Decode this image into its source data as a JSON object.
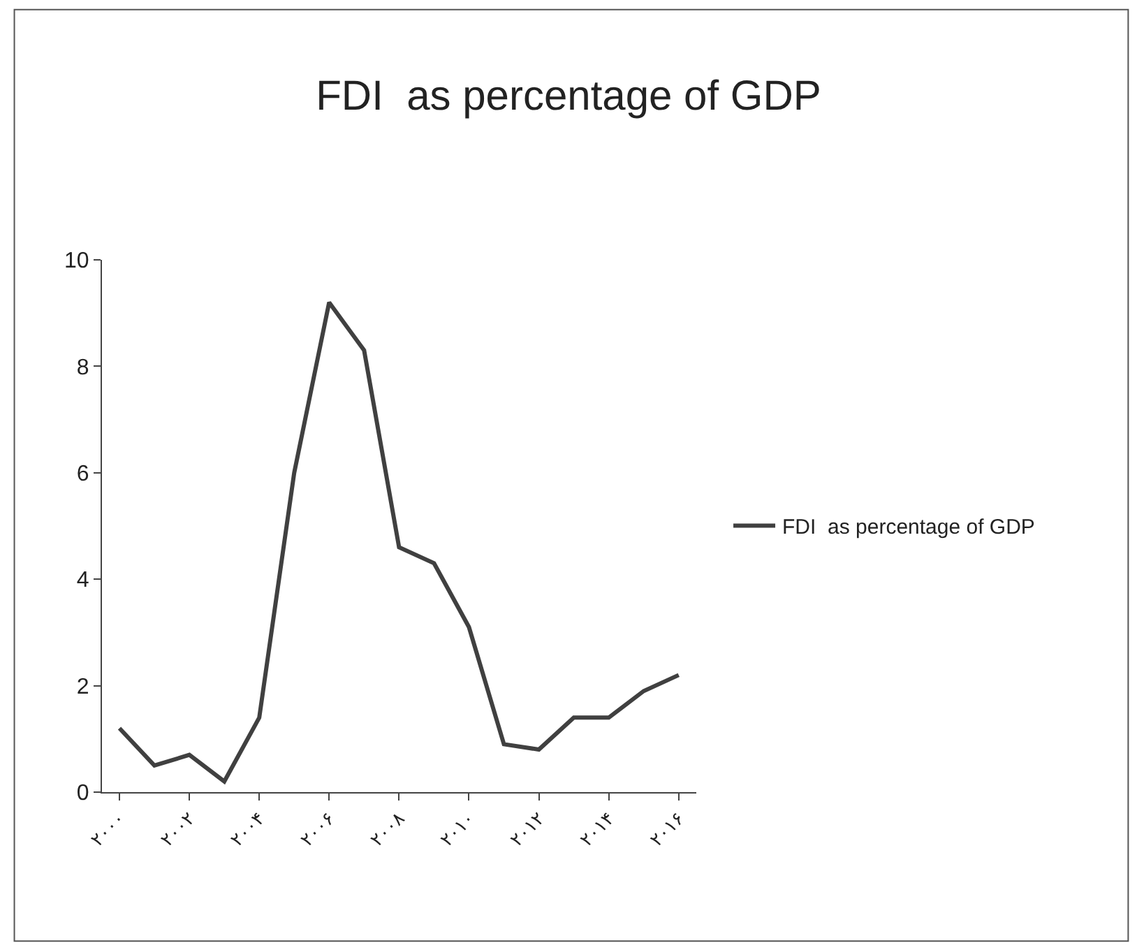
{
  "chart_data": {
    "type": "line",
    "title": "FDI  as percentage of GDP",
    "categories": [
      "۲۰۰۰",
      null,
      "۲۰۰۲",
      null,
      "۲۰۰۴",
      null,
      "۲۰۰۶",
      null,
      "۲۰۰۸",
      null,
      "۲۰۱۰",
      null,
      "۲۰۱۲",
      null,
      "۲۰۱۴",
      null,
      "۲۰۱۶"
    ],
    "series": [
      {
        "name": "FDI  as percentage of GDP",
        "color": "#404040",
        "values": [
          1.2,
          0.5,
          0.7,
          0.2,
          1.4,
          6.0,
          9.2,
          8.3,
          4.6,
          4.3,
          3.1,
          0.9,
          0.8,
          1.4,
          1.4,
          1.9,
          2.2
        ]
      }
    ],
    "ylim": [
      0,
      10
    ],
    "yticks": [
      0,
      2,
      4,
      6,
      8,
      10
    ],
    "legend": "right",
    "marker": "none",
    "line_style": "solid"
  }
}
